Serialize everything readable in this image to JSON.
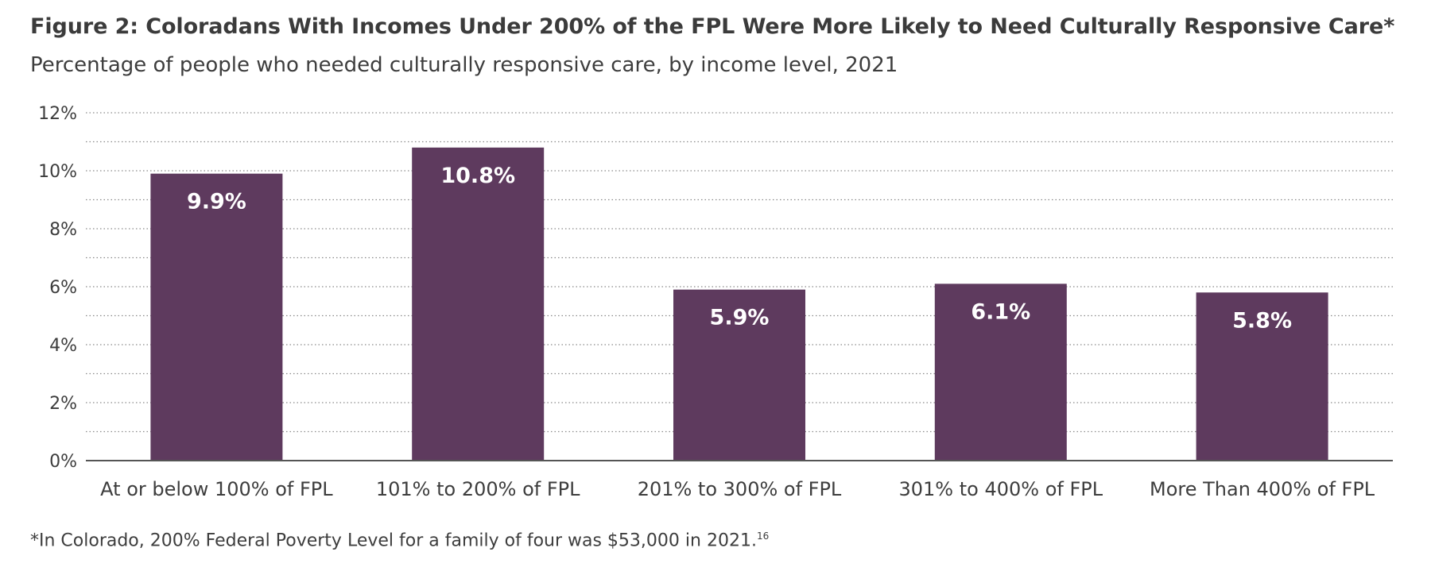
{
  "figure": {
    "title": "Figure 2: Coloradans With Incomes Under 200% of the FPL Were More Likely to Need Culturally Responsive Care*",
    "subtitle": "Percentage of people who needed culturally responsive care, by income level, 2021",
    "footnote": "*In Colorado, 200% Federal Poverty Level for a family of four was $53,000 in 2021.",
    "footnote_ref": "16"
  },
  "chart_data": {
    "type": "bar",
    "title": "Figure 2: Coloradans With Incomes Under 200% of the FPL Were More Likely to Need Culturally Responsive Care*",
    "subtitle": "Percentage of people who needed culturally responsive care, by income level, 2021",
    "categories": [
      "At or below 100% of FPL",
      "101% to 200% of FPL",
      "201% to 300% of FPL",
      "301% to 400% of FPL",
      "More Than 400% of FPL"
    ],
    "values": [
      9.9,
      10.8,
      5.9,
      6.1,
      5.8
    ],
    "data_labels": [
      "9.9%",
      "10.8%",
      "5.9%",
      "6.1%",
      "5.8%"
    ],
    "y_ticks": [
      0,
      2,
      4,
      6,
      8,
      10,
      12
    ],
    "y_tick_labels": [
      "0%",
      "2%",
      "4%",
      "6%",
      "8%",
      "10%",
      "12%"
    ],
    "ylim": [
      0,
      12
    ],
    "xlabel": "",
    "ylabel": "",
    "grid": "dotted horizontal",
    "legend": "none",
    "colors": {
      "bar": "#5e3a5e",
      "label": "#ffffff",
      "grid": "#8a8a8a",
      "axis": "#555555",
      "text": "#3d3d3d"
    }
  }
}
